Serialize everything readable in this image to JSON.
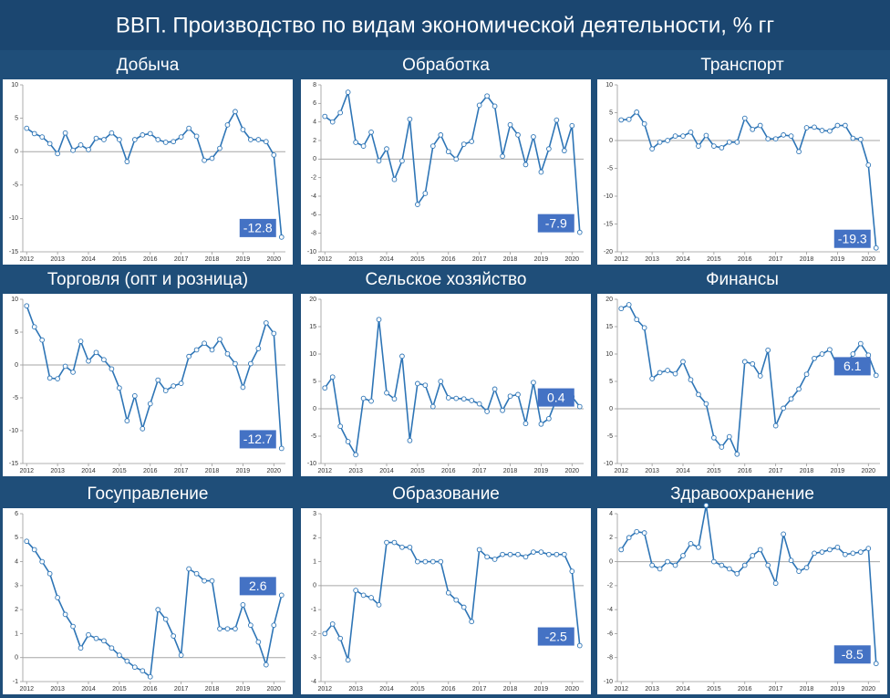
{
  "title": "ВВП. Производство по видам экономической деятельности, % гг",
  "chart_data": [
    {
      "type": "line",
      "title": "Добыча",
      "color": "#2e75b6",
      "categories": [
        "2012",
        null,
        null,
        null,
        "2013",
        null,
        null,
        null,
        "2014",
        null,
        null,
        null,
        "2015",
        null,
        null,
        null,
        "2016",
        null,
        null,
        null,
        "2017",
        null,
        null,
        null,
        "2018",
        null,
        null,
        null,
        "2019",
        null,
        null,
        null,
        "2020",
        null
      ],
      "values": [
        3.5,
        2.7,
        2.2,
        1.2,
        -0.3,
        2.8,
        0.2,
        1,
        0.3,
        2,
        1.8,
        2.8,
        1.8,
        -1.5,
        1.8,
        2.5,
        2.7,
        1.8,
        1.4,
        1.5,
        2.2,
        3.5,
        2.3,
        -1.3,
        -1,
        0.5,
        4,
        6,
        3.3,
        1.8,
        1.8,
        1.5,
        -0.5,
        -12.8
      ],
      "ylim": [
        -15,
        10
      ],
      "yticks": [
        -15,
        -10,
        -5,
        0,
        5,
        10
      ]
    },
    {
      "type": "line",
      "title": "Обработка",
      "color": "#2e75b6",
      "categories": [
        "2012",
        null,
        null,
        null,
        "2013",
        null,
        null,
        null,
        "2014",
        null,
        null,
        null,
        "2015",
        null,
        null,
        null,
        "2016",
        null,
        null,
        null,
        "2017",
        null,
        null,
        null,
        "2018",
        null,
        null,
        null,
        "2019",
        null,
        null,
        null,
        "2020",
        null
      ],
      "values": [
        4.6,
        4,
        5,
        7.2,
        1.8,
        1.4,
        2.9,
        -0.2,
        1.1,
        -2.2,
        -0.2,
        4.3,
        -4.9,
        -3.7,
        1.4,
        2.6,
        0.8,
        0,
        1.6,
        1.9,
        5.8,
        6.8,
        5.7,
        0.3,
        3.7,
        2.6,
        -0.6,
        2.4,
        -1.4,
        1.1,
        4.2,
        0.9,
        3.6,
        -7.9
      ],
      "ylim": [
        -10,
        8
      ],
      "yticks": [
        -10,
        -8,
        -6,
        -4,
        -2,
        0,
        2,
        4,
        6,
        8
      ]
    },
    {
      "type": "line",
      "title": "Транспорт",
      "color": "#2e75b6",
      "categories": [
        "2012",
        null,
        null,
        null,
        "2013",
        null,
        null,
        null,
        "2014",
        null,
        null,
        null,
        "2015",
        null,
        null,
        null,
        "2016",
        null,
        null,
        null,
        "2017",
        null,
        null,
        null,
        "2018",
        null,
        null,
        null,
        "2019",
        null,
        null,
        null,
        "2020",
        null
      ],
      "values": [
        3.7,
        3.8,
        5.1,
        3,
        -1.5,
        -0.3,
        0,
        0.8,
        0.8,
        1.5,
        -1,
        0.9,
        -1,
        -1.3,
        -0.3,
        -0.3,
        4,
        2,
        2.7,
        0.3,
        0.3,
        1,
        0.8,
        -2,
        2.3,
        2.4,
        1.8,
        1.7,
        2.7,
        2.7,
        0.4,
        0.2,
        -4.4,
        -19.3
      ],
      "ylim": [
        -20,
        10
      ],
      "yticks": [
        -20,
        -15,
        -10,
        -5,
        0,
        5,
        10
      ]
    },
    {
      "type": "line",
      "title": "Торговля (опт и розница)",
      "color": "#2e75b6",
      "categories": [
        "2012",
        null,
        null,
        null,
        "2013",
        null,
        null,
        null,
        "2014",
        null,
        null,
        null,
        "2015",
        null,
        null,
        null,
        "2016",
        null,
        null,
        null,
        "2017",
        null,
        null,
        null,
        "2018",
        null,
        null,
        null,
        "2019",
        null,
        null,
        null,
        "2020",
        null
      ],
      "values": [
        9,
        5.8,
        3.8,
        -2,
        -2.1,
        -0.2,
        -1.1,
        3.6,
        0.6,
        1.9,
        0.8,
        -0.6,
        -3.5,
        -8.5,
        -4.7,
        -9.7,
        -5.9,
        -2.3,
        -3.9,
        -3.2,
        -2.8,
        1.3,
        2.3,
        3.3,
        2.3,
        3.9,
        1.7,
        0.2,
        -3.4,
        0.2,
        2.5,
        6.4,
        4.8,
        -12.7
      ],
      "ylim": [
        -15,
        10
      ],
      "yticks": [
        -15,
        -10,
        -5,
        0,
        5,
        10
      ]
    },
    {
      "type": "line",
      "title": "Сельское хозяйство",
      "color": "#2e75b6",
      "categories": [
        "2012",
        null,
        null,
        null,
        "2013",
        null,
        null,
        null,
        "2014",
        null,
        null,
        null,
        "2015",
        null,
        null,
        null,
        "2016",
        null,
        null,
        null,
        "2017",
        null,
        null,
        null,
        "2018",
        null,
        null,
        null,
        "2019",
        null,
        null,
        null,
        "2020",
        null
      ],
      "values": [
        3.8,
        5.8,
        -3.2,
        -6,
        -8.4,
        1.9,
        1.4,
        16.3,
        2.9,
        1.8,
        9.6,
        -5.8,
        4.6,
        4.3,
        0.4,
        5,
        2,
        1.9,
        1.8,
        1.5,
        0.9,
        -0.5,
        3.6,
        -0.3,
        2.3,
        2.6,
        -2.7,
        4.8,
        -2.8,
        -1.8,
        1.8,
        2.1,
        2.2,
        0.4
      ],
      "ylim": [
        -10,
        20
      ],
      "yticks": [
        -10,
        -5,
        0,
        5,
        10,
        15,
        20
      ]
    },
    {
      "type": "line",
      "title": "Финансы",
      "color": "#2e75b6",
      "categories": [
        "2012",
        null,
        null,
        null,
        "2013",
        null,
        null,
        null,
        "2014",
        null,
        null,
        null,
        "2015",
        null,
        null,
        null,
        "2016",
        null,
        null,
        null,
        "2017",
        null,
        null,
        null,
        "2018",
        null,
        null,
        null,
        "2019",
        null,
        null,
        null,
        "2020",
        null
      ],
      "values": [
        18.3,
        19,
        16.3,
        14.8,
        5.5,
        6.6,
        7,
        6.4,
        8.6,
        5.3,
        2.6,
        0.9,
        -5.3,
        -7,
        -5.1,
        -8.3,
        8.6,
        8.2,
        6,
        10.7,
        -3.1,
        0.1,
        1.8,
        3.6,
        6.3,
        9.2,
        10,
        10.8,
        7.8,
        7.7,
        10,
        11.9,
        9.8,
        6.1
      ],
      "ylim": [
        -10,
        20
      ],
      "yticks": [
        -10,
        -5,
        0,
        5,
        10,
        15,
        20
      ]
    },
    {
      "type": "line",
      "title": "Госуправление",
      "color": "#2e75b6",
      "categories": [
        "2012",
        null,
        null,
        null,
        "2013",
        null,
        null,
        null,
        "2014",
        null,
        null,
        null,
        "2015",
        null,
        null,
        null,
        "2016",
        null,
        null,
        null,
        "2017",
        null,
        null,
        null,
        "2018",
        null,
        null,
        null,
        "2019",
        null,
        null,
        null,
        "2020",
        null
      ],
      "values": [
        4.85,
        4.5,
        4,
        3.5,
        2.5,
        1.8,
        1.3,
        0.4,
        0.95,
        0.8,
        0.7,
        0.4,
        0.1,
        -0.15,
        -0.4,
        -0.55,
        -0.8,
        2,
        1.6,
        0.9,
        0.1,
        3.7,
        3.5,
        3.2,
        3.2,
        1.2,
        1.2,
        1.2,
        2.2,
        1.35,
        0.65,
        -0.3,
        1.35,
        2.6
      ],
      "ylim": [
        -1,
        6
      ],
      "yticks": [
        -1,
        0,
        1,
        2,
        3,
        4,
        5,
        6
      ]
    },
    {
      "type": "line",
      "title": "Образование",
      "color": "#2e75b6",
      "categories": [
        "2012",
        null,
        null,
        null,
        "2013",
        null,
        null,
        null,
        "2014",
        null,
        null,
        null,
        "2015",
        null,
        null,
        null,
        "2016",
        null,
        null,
        null,
        "2017",
        null,
        null,
        null,
        "2018",
        null,
        null,
        null,
        "2019",
        null,
        null,
        null,
        "2020",
        null
      ],
      "values": [
        -2,
        -1.6,
        -2.2,
        -3.1,
        -0.2,
        -0.4,
        -0.5,
        -0.8,
        1.8,
        1.8,
        1.6,
        1.6,
        1,
        1,
        1,
        1,
        -0.3,
        -0.6,
        -0.9,
        -1.5,
        1.5,
        1.2,
        1.1,
        1.3,
        1.3,
        1.3,
        1.2,
        1.4,
        1.4,
        1.3,
        1.3,
        1.3,
        0.6,
        -2.5
      ],
      "ylim": [
        -4,
        3
      ],
      "yticks": [
        -4,
        -3,
        -2,
        -1,
        0,
        1,
        2,
        3
      ]
    },
    {
      "type": "line",
      "title": "Здравоохранение",
      "color": "#2e75b6",
      "categories": [
        "2012",
        null,
        null,
        null,
        "2013",
        null,
        null,
        null,
        "2014",
        null,
        null,
        null,
        "2015",
        null,
        null,
        null,
        "2016",
        null,
        null,
        null,
        "2017",
        null,
        null,
        null,
        "2018",
        null,
        null,
        null,
        "2019",
        null,
        null,
        null,
        "2020",
        null
      ],
      "values": [
        1,
        2,
        2.5,
        2.4,
        -0.3,
        -0.6,
        0,
        -0.3,
        0.5,
        1.5,
        1.2,
        4.7,
        0,
        -0.3,
        -0.6,
        -1,
        -0.3,
        0.5,
        1,
        -0.3,
        -1.8,
        2.3,
        0.1,
        -0.8,
        -0.5,
        0.7,
        0.8,
        1,
        1.2,
        0.6,
        0.7,
        0.8,
        1.1,
        -8.5
      ],
      "ylim": [
        -10,
        4
      ],
      "yticks": [
        -10,
        -8,
        -6,
        -4,
        -2,
        0,
        2,
        4
      ]
    }
  ]
}
